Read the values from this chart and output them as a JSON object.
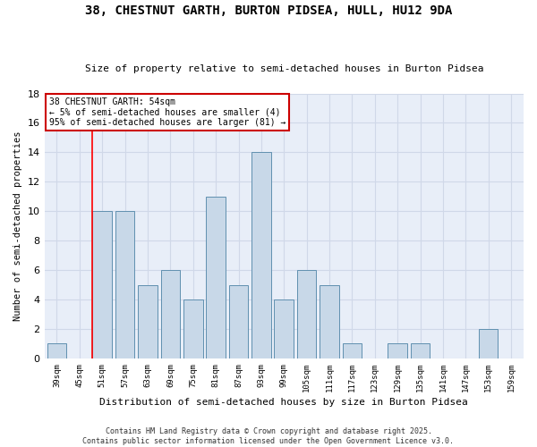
{
  "title": "38, CHESTNUT GARTH, BURTON PIDSEA, HULL, HU12 9DA",
  "subtitle": "Size of property relative to semi-detached houses in Burton Pidsea",
  "xlabel": "Distribution of semi-detached houses by size in Burton Pidsea",
  "ylabel": "Number of semi-detached properties",
  "footer": "Contains HM Land Registry data © Crown copyright and database right 2025.\nContains public sector information licensed under the Open Government Licence v3.0.",
  "categories": [
    "39sqm",
    "45sqm",
    "51sqm",
    "57sqm",
    "63sqm",
    "69sqm",
    "75sqm",
    "81sqm",
    "87sqm",
    "93sqm",
    "99sqm",
    "105sqm",
    "111sqm",
    "117sqm",
    "123sqm",
    "129sqm",
    "135sqm",
    "141sqm",
    "147sqm",
    "153sqm",
    "159sqm"
  ],
  "values": [
    1,
    0,
    10,
    10,
    5,
    6,
    4,
    11,
    5,
    14,
    4,
    6,
    5,
    1,
    0,
    1,
    1,
    0,
    0,
    2,
    0
  ],
  "bar_color": "#c8d8e8",
  "bar_edge_color": "#6090b0",
  "grid_color": "#d0d8e8",
  "bg_color": "#e8eef8",
  "annotation_text": "38 CHESTNUT GARTH: 54sqm\n← 5% of semi-detached houses are smaller (4)\n95% of semi-detached houses are larger (81) →",
  "annotation_box_color": "#ffffff",
  "annotation_box_edge": "#cc0000",
  "red_line_index": 2,
  "ylim": [
    0,
    18
  ],
  "yticks": [
    0,
    2,
    4,
    6,
    8,
    10,
    12,
    14,
    16,
    18
  ]
}
